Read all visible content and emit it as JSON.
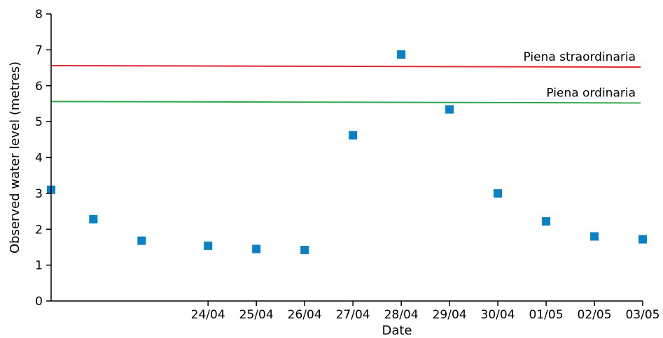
{
  "chart_data": {
    "type": "scatter",
    "xlabel": "Date",
    "ylabel": "Observed water level (metres)",
    "ylim": [
      0,
      8
    ],
    "xlim": [
      "2024-04-20T18:00",
      "2024-05-03T00:00"
    ],
    "yticks": [
      0,
      1,
      2,
      3,
      4,
      5,
      6,
      7,
      8
    ],
    "xticks": [
      {
        "x": "2024-04-24T00:00",
        "label": "24/04"
      },
      {
        "x": "2024-04-25T00:00",
        "label": "25/04"
      },
      {
        "x": "2024-04-26T00:00",
        "label": "26/04"
      },
      {
        "x": "2024-04-27T00:00",
        "label": "27/04"
      },
      {
        "x": "2024-04-28T00:00",
        "label": "28/04"
      },
      {
        "x": "2024-04-29T00:00",
        "label": "29/04"
      },
      {
        "x": "2024-04-30T00:00",
        "label": "30/04"
      },
      {
        "x": "2024-05-01T00:00",
        "label": "01/05"
      },
      {
        "x": "2024-05-02T00:00",
        "label": "02/05"
      },
      {
        "x": "2024-05-03T00:00",
        "label": "03/05"
      }
    ],
    "grid": false,
    "series": [
      {
        "color": "#0a80c6",
        "marker": "square",
        "points": [
          {
            "x": "2024-04-20T18:00",
            "y": 3.1
          },
          {
            "x": "2024-04-21T15:00",
            "y": 2.28
          },
          {
            "x": "2024-04-22T15:00",
            "y": 1.68
          },
          {
            "x": "2024-04-24T00:00",
            "y": 1.54
          },
          {
            "x": "2024-04-25T00:00",
            "y": 1.45
          },
          {
            "x": "2024-04-26T00:00",
            "y": 1.42
          },
          {
            "x": "2024-04-27T00:00",
            "y": 4.62
          },
          {
            "x": "2024-04-28T00:00",
            "y": 6.87
          },
          {
            "x": "2024-04-29T00:00",
            "y": 5.34
          },
          {
            "x": "2024-04-30T00:00",
            "y": 3.0
          },
          {
            "x": "2024-05-01T00:00",
            "y": 2.22
          },
          {
            "x": "2024-05-02T00:00",
            "y": 1.8
          },
          {
            "x": "2024-05-03T00:00",
            "y": 1.72
          }
        ]
      }
    ],
    "reference_lines": [
      {
        "label": "Piena straordinaria",
        "y1": 6.56,
        "y2": 6.52,
        "color": "#e0282d"
      },
      {
        "label": "Piena ordinaria",
        "y1": 5.56,
        "y2": 5.52,
        "color": "#2ea64a"
      }
    ]
  }
}
